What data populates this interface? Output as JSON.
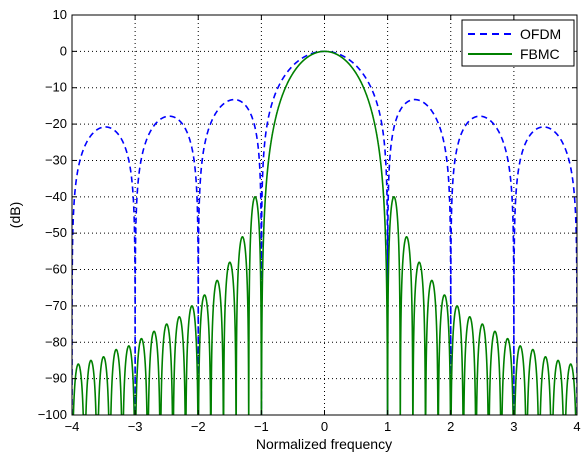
{
  "chart_data": {
    "type": "line",
    "title": "",
    "xlabel": "Normalized frequency",
    "ylabel": "(dB)",
    "xlim": [
      -4,
      4
    ],
    "ylim": [
      -100,
      10
    ],
    "x_ticks": [
      -4,
      -3,
      -2,
      -1,
      0,
      1,
      2,
      3,
      4
    ],
    "y_ticks": [
      10,
      0,
      -10,
      -20,
      -30,
      -40,
      -50,
      -60,
      -70,
      -80,
      -90,
      -100
    ],
    "x_tick_labels": [
      "−4",
      "−3",
      "−2",
      "−1",
      "0",
      "1",
      "2",
      "3",
      "4"
    ],
    "y_tick_labels": [
      "10",
      "0",
      "−10",
      "−20",
      "−30",
      "−40",
      "−50",
      "−60",
      "−70",
      "−80",
      "−90",
      "−100"
    ],
    "grid": true,
    "legend_position": "top-right",
    "series": [
      {
        "name": "OFDM",
        "color": "#0000ff",
        "style": "dashed",
        "description_points": [
          {
            "x": 0,
            "y": 0
          },
          {
            "x": 1,
            "y": -100
          },
          {
            "x": 1.43,
            "y": -13.3
          },
          {
            "x": 2.46,
            "y": -17.8
          },
          {
            "x": 3.47,
            "y": -20.8
          },
          {
            "x": -1.43,
            "y": -13.3
          },
          {
            "x": -2.46,
            "y": -17.8
          },
          {
            "x": -3.47,
            "y": -20.8
          }
        ]
      },
      {
        "name": "FBMC",
        "color": "#008000",
        "style": "solid",
        "sidelobe_peaks": [
          {
            "x": 0,
            "y": 0
          },
          {
            "x": 1.1,
            "y": -40
          },
          {
            "x": 1.3,
            "y": -51
          },
          {
            "x": 1.5,
            "y": -58
          },
          {
            "x": 1.7,
            "y": -63
          },
          {
            "x": 1.9,
            "y": -67
          },
          {
            "x": 2.1,
            "y": -70
          },
          {
            "x": 2.3,
            "y": -73
          },
          {
            "x": 2.5,
            "y": -75
          },
          {
            "x": 2.7,
            "y": -77
          },
          {
            "x": 2.9,
            "y": -79
          },
          {
            "x": 3.1,
            "y": -81
          },
          {
            "x": 3.3,
            "y": -82
          },
          {
            "x": 3.5,
            "y": -84
          },
          {
            "x": 3.7,
            "y": -85
          },
          {
            "x": 3.9,
            "y": -86
          }
        ]
      }
    ]
  }
}
